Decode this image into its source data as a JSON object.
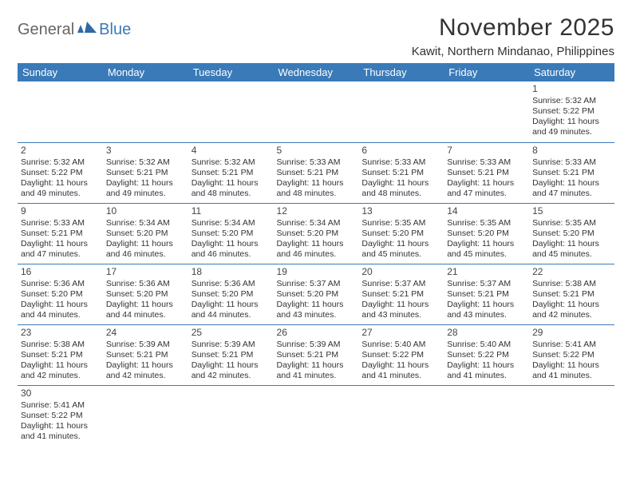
{
  "logo": {
    "general": "General",
    "blue": "Blue"
  },
  "title": "November 2025",
  "subtitle": "Kawit, Northern Mindanao, Philippines",
  "header_bg": "#3a7ab8",
  "header_fg": "#ffffff",
  "border_color": "#3a7ab8",
  "weekdays": [
    "Sunday",
    "Monday",
    "Tuesday",
    "Wednesday",
    "Thursday",
    "Friday",
    "Saturday"
  ],
  "weeks": [
    [
      null,
      null,
      null,
      null,
      null,
      null,
      {
        "d": "1",
        "sr": "5:32 AM",
        "ss": "5:22 PM",
        "dl": "11 hours and 49 minutes."
      }
    ],
    [
      {
        "d": "2",
        "sr": "5:32 AM",
        "ss": "5:22 PM",
        "dl": "11 hours and 49 minutes."
      },
      {
        "d": "3",
        "sr": "5:32 AM",
        "ss": "5:21 PM",
        "dl": "11 hours and 49 minutes."
      },
      {
        "d": "4",
        "sr": "5:32 AM",
        "ss": "5:21 PM",
        "dl": "11 hours and 48 minutes."
      },
      {
        "d": "5",
        "sr": "5:33 AM",
        "ss": "5:21 PM",
        "dl": "11 hours and 48 minutes."
      },
      {
        "d": "6",
        "sr": "5:33 AM",
        "ss": "5:21 PM",
        "dl": "11 hours and 48 minutes."
      },
      {
        "d": "7",
        "sr": "5:33 AM",
        "ss": "5:21 PM",
        "dl": "11 hours and 47 minutes."
      },
      {
        "d": "8",
        "sr": "5:33 AM",
        "ss": "5:21 PM",
        "dl": "11 hours and 47 minutes."
      }
    ],
    [
      {
        "d": "9",
        "sr": "5:33 AM",
        "ss": "5:21 PM",
        "dl": "11 hours and 47 minutes."
      },
      {
        "d": "10",
        "sr": "5:34 AM",
        "ss": "5:20 PM",
        "dl": "11 hours and 46 minutes."
      },
      {
        "d": "11",
        "sr": "5:34 AM",
        "ss": "5:20 PM",
        "dl": "11 hours and 46 minutes."
      },
      {
        "d": "12",
        "sr": "5:34 AM",
        "ss": "5:20 PM",
        "dl": "11 hours and 46 minutes."
      },
      {
        "d": "13",
        "sr": "5:35 AM",
        "ss": "5:20 PM",
        "dl": "11 hours and 45 minutes."
      },
      {
        "d": "14",
        "sr": "5:35 AM",
        "ss": "5:20 PM",
        "dl": "11 hours and 45 minutes."
      },
      {
        "d": "15",
        "sr": "5:35 AM",
        "ss": "5:20 PM",
        "dl": "11 hours and 45 minutes."
      }
    ],
    [
      {
        "d": "16",
        "sr": "5:36 AM",
        "ss": "5:20 PM",
        "dl": "11 hours and 44 minutes."
      },
      {
        "d": "17",
        "sr": "5:36 AM",
        "ss": "5:20 PM",
        "dl": "11 hours and 44 minutes."
      },
      {
        "d": "18",
        "sr": "5:36 AM",
        "ss": "5:20 PM",
        "dl": "11 hours and 44 minutes."
      },
      {
        "d": "19",
        "sr": "5:37 AM",
        "ss": "5:20 PM",
        "dl": "11 hours and 43 minutes."
      },
      {
        "d": "20",
        "sr": "5:37 AM",
        "ss": "5:21 PM",
        "dl": "11 hours and 43 minutes."
      },
      {
        "d": "21",
        "sr": "5:37 AM",
        "ss": "5:21 PM",
        "dl": "11 hours and 43 minutes."
      },
      {
        "d": "22",
        "sr": "5:38 AM",
        "ss": "5:21 PM",
        "dl": "11 hours and 42 minutes."
      }
    ],
    [
      {
        "d": "23",
        "sr": "5:38 AM",
        "ss": "5:21 PM",
        "dl": "11 hours and 42 minutes."
      },
      {
        "d": "24",
        "sr": "5:39 AM",
        "ss": "5:21 PM",
        "dl": "11 hours and 42 minutes."
      },
      {
        "d": "25",
        "sr": "5:39 AM",
        "ss": "5:21 PM",
        "dl": "11 hours and 42 minutes."
      },
      {
        "d": "26",
        "sr": "5:39 AM",
        "ss": "5:21 PM",
        "dl": "11 hours and 41 minutes."
      },
      {
        "d": "27",
        "sr": "5:40 AM",
        "ss": "5:22 PM",
        "dl": "11 hours and 41 minutes."
      },
      {
        "d": "28",
        "sr": "5:40 AM",
        "ss": "5:22 PM",
        "dl": "11 hours and 41 minutes."
      },
      {
        "d": "29",
        "sr": "5:41 AM",
        "ss": "5:22 PM",
        "dl": "11 hours and 41 minutes."
      }
    ],
    [
      {
        "d": "30",
        "sr": "5:41 AM",
        "ss": "5:22 PM",
        "dl": "11 hours and 41 minutes."
      },
      null,
      null,
      null,
      null,
      null,
      null
    ]
  ],
  "labels": {
    "sunrise": "Sunrise: ",
    "sunset": "Sunset: ",
    "daylight": "Daylight: "
  }
}
